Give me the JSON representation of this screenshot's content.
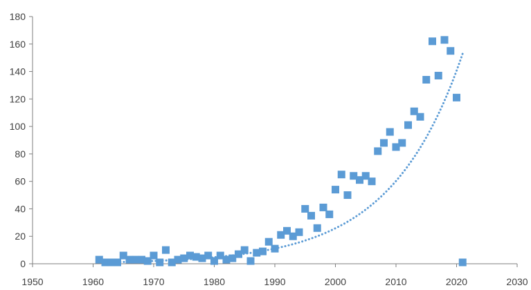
{
  "chart_data": {
    "type": "scatter",
    "title": "",
    "xlabel": "",
    "ylabel": "",
    "xlim": [
      1950,
      2030
    ],
    "ylim": [
      0,
      180
    ],
    "x_ticks": [
      1950,
      1960,
      1970,
      1980,
      1990,
      2000,
      2010,
      2020,
      2030
    ],
    "y_ticks": [
      0,
      20,
      40,
      60,
      80,
      100,
      120,
      140,
      160,
      180
    ],
    "grid": false,
    "legend": "none",
    "series": [
      {
        "marker": "square",
        "color": "#5b9bd5",
        "points": [
          [
            1961,
            3
          ],
          [
            1962,
            1
          ],
          [
            1963,
            1
          ],
          [
            1964,
            1
          ],
          [
            1965,
            6
          ],
          [
            1966,
            3
          ],
          [
            1967,
            3
          ],
          [
            1968,
            3
          ],
          [
            1969,
            2
          ],
          [
            1970,
            6
          ],
          [
            1971,
            1
          ],
          [
            1972,
            10
          ],
          [
            1973,
            1
          ],
          [
            1974,
            3
          ],
          [
            1975,
            4
          ],
          [
            1976,
            6
          ],
          [
            1977,
            5
          ],
          [
            1978,
            4
          ],
          [
            1979,
            6
          ],
          [
            1980,
            2
          ],
          [
            1981,
            6
          ],
          [
            1982,
            3
          ],
          [
            1983,
            4
          ],
          [
            1984,
            7
          ],
          [
            1985,
            10
          ],
          [
            1986,
            2
          ],
          [
            1987,
            8
          ],
          [
            1988,
            9
          ],
          [
            1989,
            16
          ],
          [
            1990,
            11
          ],
          [
            1991,
            21
          ],
          [
            1992,
            24
          ],
          [
            1993,
            20
          ],
          [
            1994,
            23
          ],
          [
            1995,
            40
          ],
          [
            1996,
            35
          ],
          [
            1997,
            26
          ],
          [
            1998,
            41
          ],
          [
            1999,
            36
          ],
          [
            2000,
            54
          ],
          [
            2001,
            65
          ],
          [
            2002,
            50
          ],
          [
            2003,
            64
          ],
          [
            2004,
            61
          ],
          [
            2005,
            64
          ],
          [
            2006,
            60
          ],
          [
            2007,
            82
          ],
          [
            2008,
            88
          ],
          [
            2009,
            96
          ],
          [
            2010,
            85
          ],
          [
            2011,
            88
          ],
          [
            2012,
            101
          ],
          [
            2013,
            111
          ],
          [
            2014,
            107
          ],
          [
            2015,
            134
          ],
          [
            2016,
            162
          ],
          [
            2017,
            137
          ],
          [
            2018,
            163
          ],
          [
            2019,
            155
          ],
          [
            2020,
            121
          ],
          [
            2021,
            1
          ]
        ]
      }
    ],
    "trendline": {
      "type": "exponential",
      "style": "dotted",
      "color": "#5b9bd5",
      "x_range": [
        1961,
        2021
      ],
      "y_start": 0.95,
      "y_end": 153
    }
  }
}
